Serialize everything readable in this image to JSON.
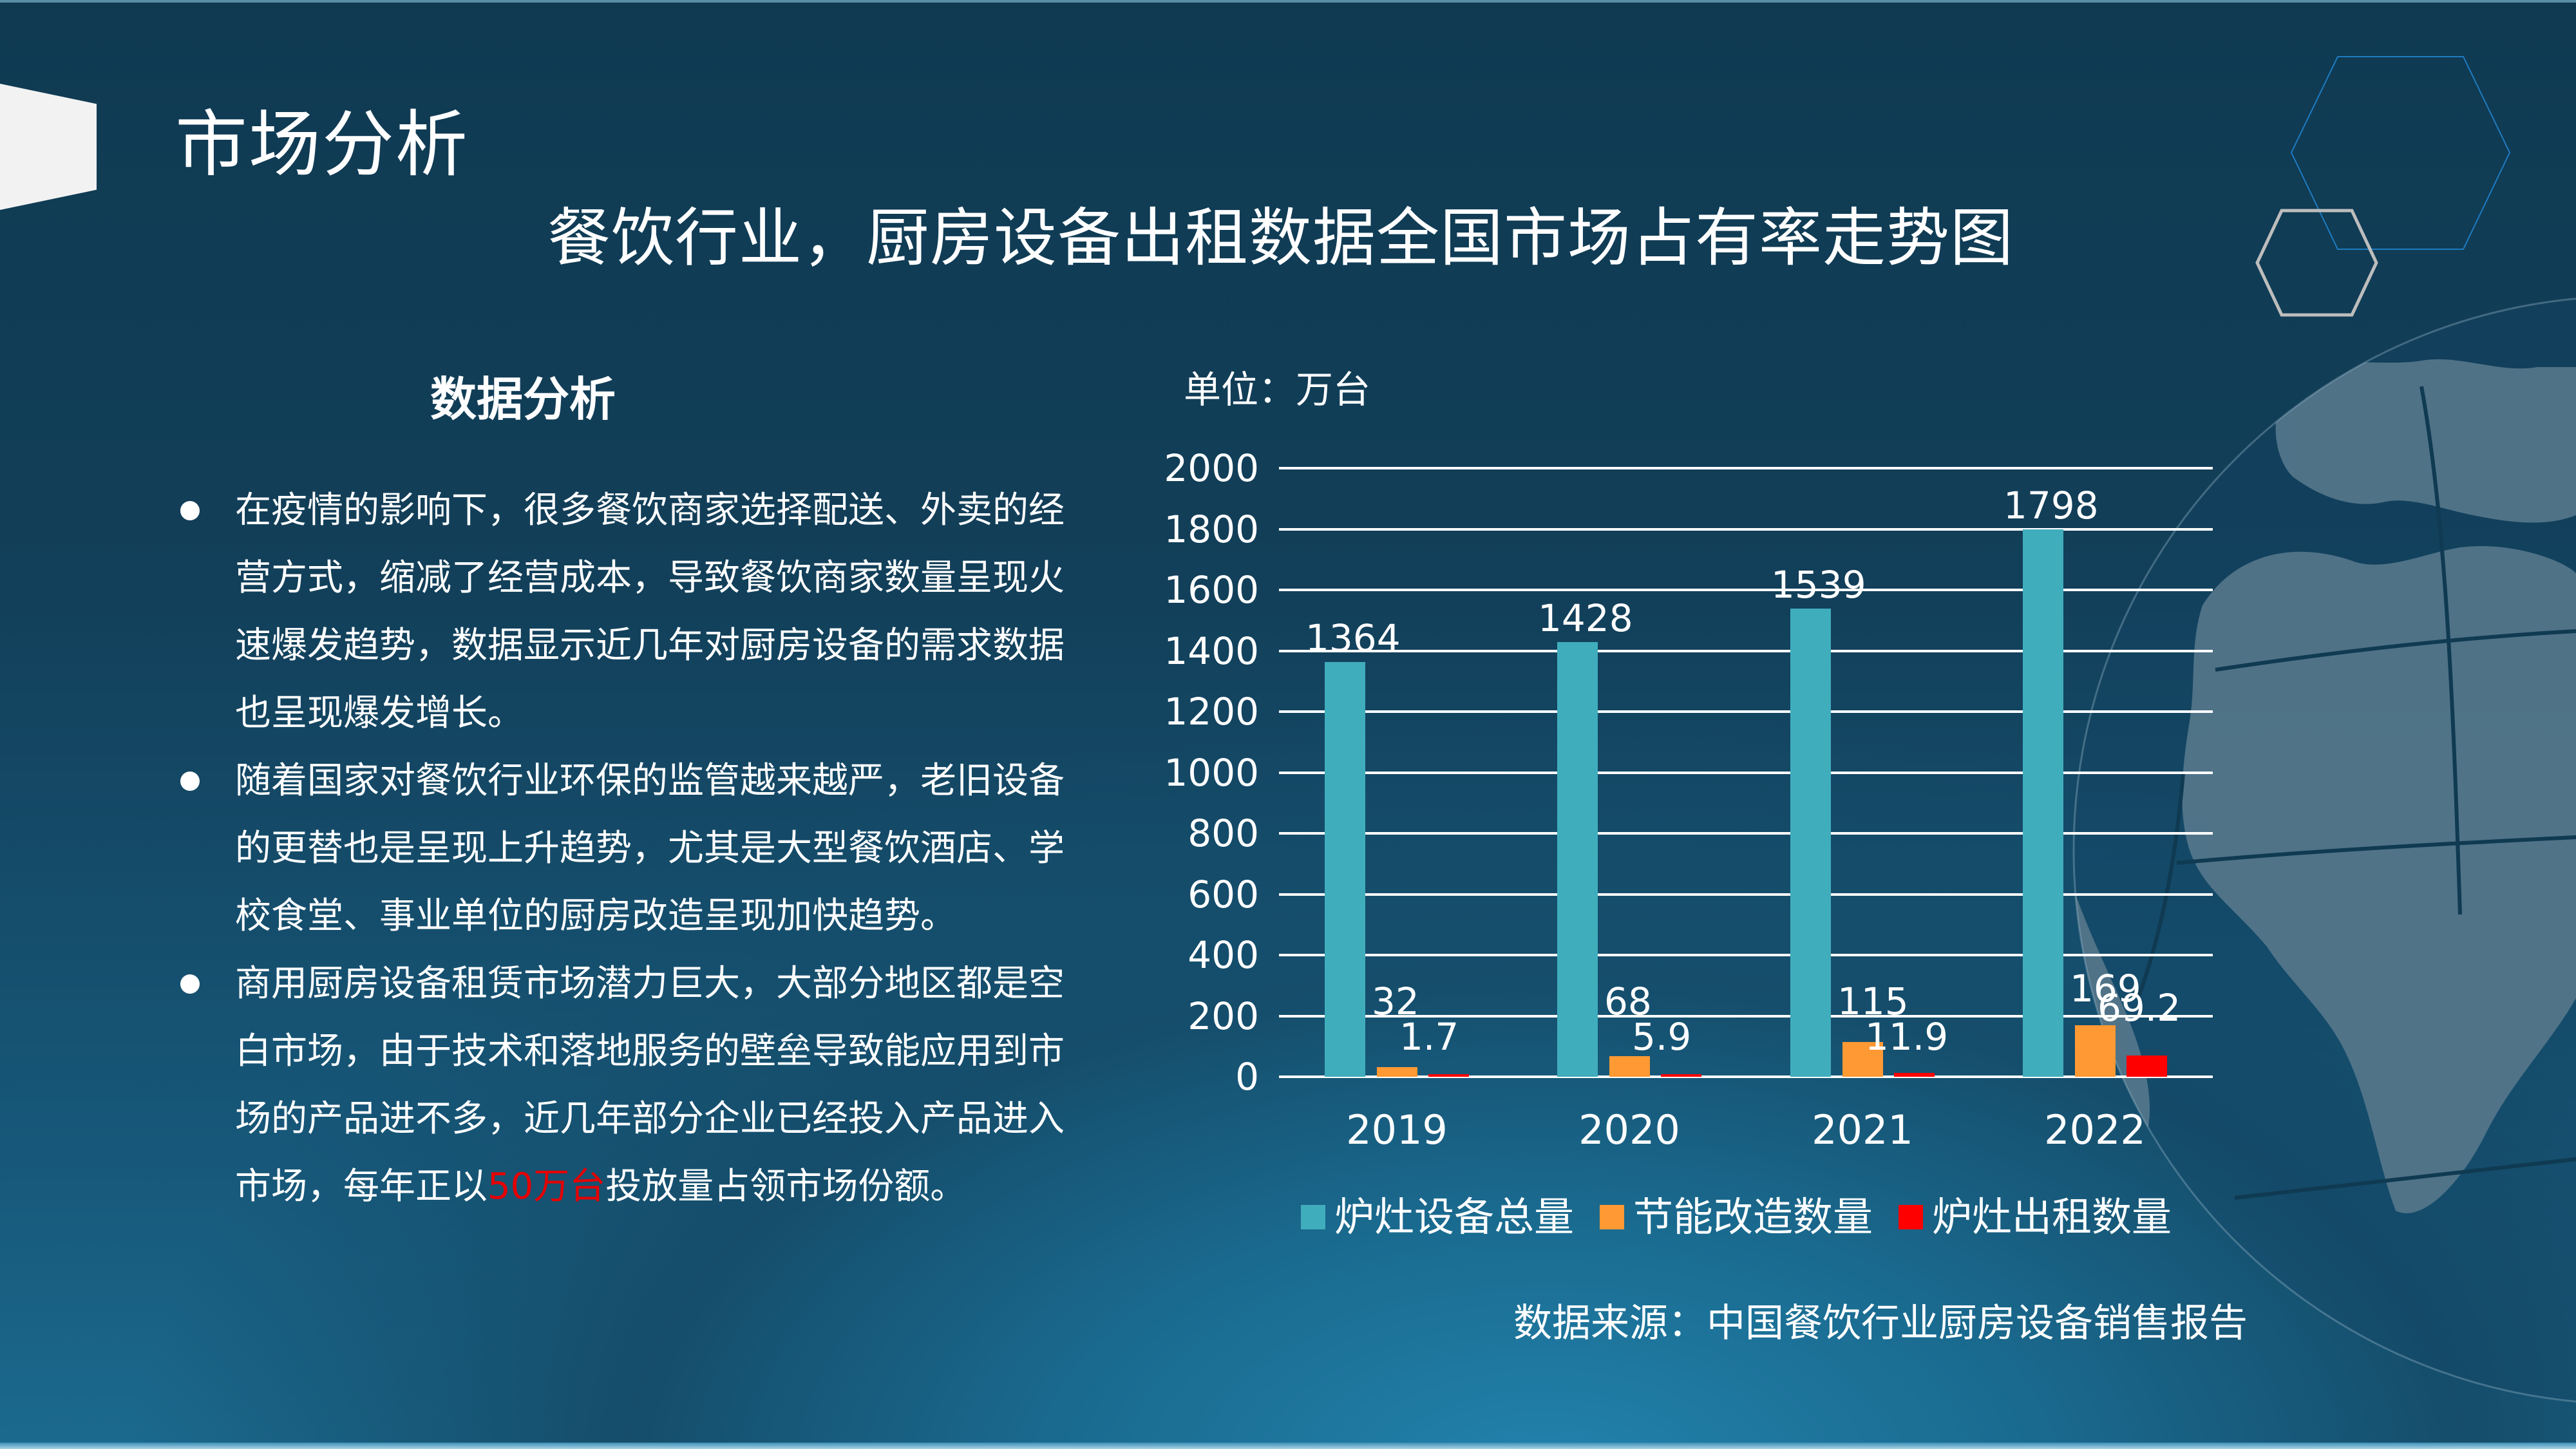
{
  "header": {
    "page_title": "市场分析",
    "chart_title": "餐饮行业，厨房设备出租数据全国市场占有率走势图"
  },
  "analysis": {
    "heading": "数据分析",
    "bullets": [
      {
        "text": "在疫情的影响下，很多餐饮商家选择配送、外卖的经营方式，缩减了经营成本，导致餐饮商家数量呈现火速爆发趋势，数据显示近几年对厨房设备的需求数据也呈现爆发增长。"
      },
      {
        "text": "随着国家对餐饮行业环保的监管越来越严，老旧设备的更替也是呈现上升趋势，尤其是大型餐饮酒店、学校食堂、事业单位的厨房改造呈现加快趋势。"
      },
      {
        "text_before": "商用厨房设备租赁市场潜力巨大，大部分地区都是空白市场，由于技术和落地服务的壁垒导致能应用到市场的产品进不多，近几年部分企业已经投入产品进入市场，每年正以",
        "highlight": "50万台",
        "text_after": "投放量占领市场份额。"
      }
    ]
  },
  "chart": {
    "unit_label": "单位：万台",
    "source": "数据来源：中国餐饮行业厨房设备销售报告",
    "y_ticks": [
      "2000",
      "1800",
      "1600",
      "1400",
      "1200",
      "1000",
      "800",
      "600",
      "400",
      "200",
      "0"
    ],
    "years": [
      "2019",
      "2020",
      "2021",
      "2022"
    ],
    "legend": [
      "炉灶设备总量",
      "节能改造数量",
      "炉灶出租数量"
    ],
    "colors": {
      "total": "#40adbd",
      "retrofit": "#ff9933",
      "rental": "#ff0000"
    },
    "labels": {
      "total": [
        "1364",
        "1428",
        "1539",
        "1798"
      ],
      "retrofit": [
        "32",
        "68",
        "115",
        "169"
      ],
      "rental": [
        "1.7",
        "5.9",
        "11.9",
        "69.2"
      ]
    }
  },
  "chart_data": {
    "type": "bar",
    "title": "餐饮行业，厨房设备出租数据全国市场占有率走势图",
    "xlabel": "",
    "ylabel": "单位：万台",
    "categories": [
      "2019",
      "2020",
      "2021",
      "2022"
    ],
    "series": [
      {
        "name": "炉灶设备总量",
        "color": "#40adbd",
        "values": [
          1364,
          1428,
          1539,
          1798
        ]
      },
      {
        "name": "节能改造数量",
        "color": "#ff9933",
        "values": [
          32,
          68,
          115,
          169
        ]
      },
      {
        "name": "炉灶出租数量",
        "color": "#ff0000",
        "values": [
          1.7,
          5.9,
          11.9,
          69.2
        ]
      }
    ],
    "ylim": [
      0,
      2000
    ],
    "y_tick_step": 200,
    "grid": true,
    "legend_position": "bottom",
    "data_labels": true,
    "source": "数据来源：中国餐饮行业厨房设备销售报告"
  }
}
